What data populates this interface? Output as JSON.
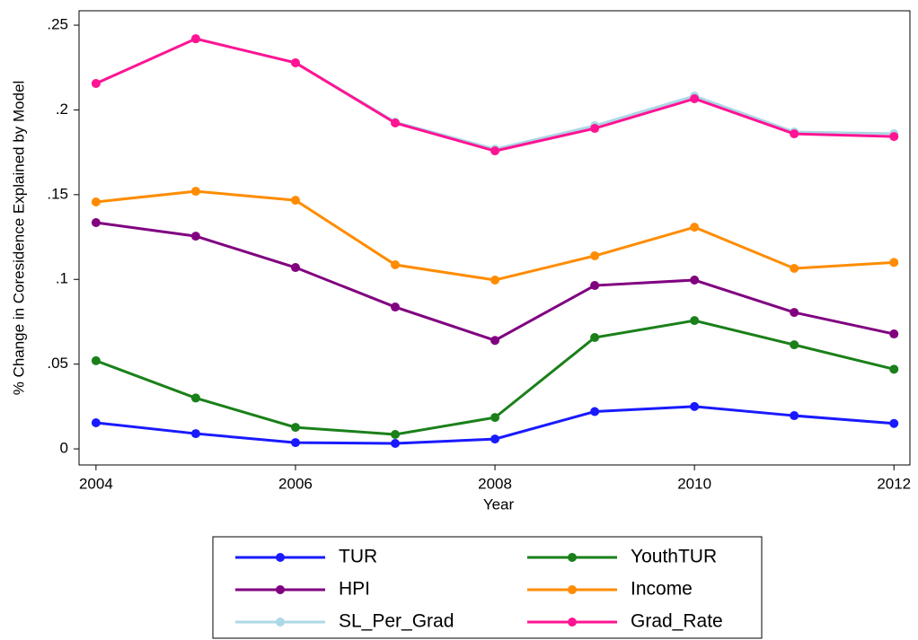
{
  "chart_data": {
    "type": "line",
    "xlabel": "Year",
    "ylabel": "% Change in Coresidence Explained by Model",
    "x": [
      2004,
      2005,
      2006,
      2007,
      2008,
      2009,
      2010,
      2011,
      2012
    ],
    "xlim": [
      2003.83,
      2012.16
    ],
    "xticks": [
      2004,
      2006,
      2008,
      2010,
      2012
    ],
    "ylim": [
      -0.0095,
      0.2585
    ],
    "yticks": [
      0,
      {
        "value": 0.05,
        "label": ".05"
      },
      {
        "value": 0.1,
        "label": ".1"
      },
      {
        "value": 0.15,
        "label": ".15"
      },
      {
        "value": 0.2,
        "label": ".2"
      },
      {
        "value": 0.25,
        "label": ".25"
      }
    ],
    "grid": false,
    "legend": "bottom",
    "series": [
      {
        "name": "TUR",
        "color": "#1a1aff",
        "values": [
          0.0154,
          0.009,
          0.0037,
          0.0032,
          0.0058,
          0.022,
          0.025,
          0.0196,
          0.015
        ]
      },
      {
        "name": "YouthTUR",
        "color": "#1a801a",
        "values": [
          0.052,
          0.03,
          0.0127,
          0.0085,
          0.0185,
          0.0657,
          0.0757,
          0.0614,
          0.047
        ]
      },
      {
        "name": "HPI",
        "color": "#800080",
        "values": [
          0.1335,
          0.1255,
          0.107,
          0.0837,
          0.064,
          0.0964,
          0.0996,
          0.0805,
          0.0678
        ]
      },
      {
        "name": "Income",
        "color": "#ff8c00",
        "values": [
          0.1457,
          0.152,
          0.1467,
          0.1086,
          0.0996,
          0.1139,
          0.1308,
          0.1065,
          0.11
        ]
      },
      {
        "name": "SL_Per_Grad",
        "color": "#add8e6",
        "values": [
          0.2156,
          0.242,
          0.2278,
          0.1928,
          0.1769,
          0.1907,
          0.2082,
          0.187,
          0.186
        ]
      },
      {
        "name": "Grad_Rate",
        "color": "#ff1493",
        "values": [
          0.2156,
          0.242,
          0.2278,
          0.1923,
          0.1758,
          0.1891,
          0.2066,
          0.1859,
          0.1843
        ]
      }
    ]
  }
}
